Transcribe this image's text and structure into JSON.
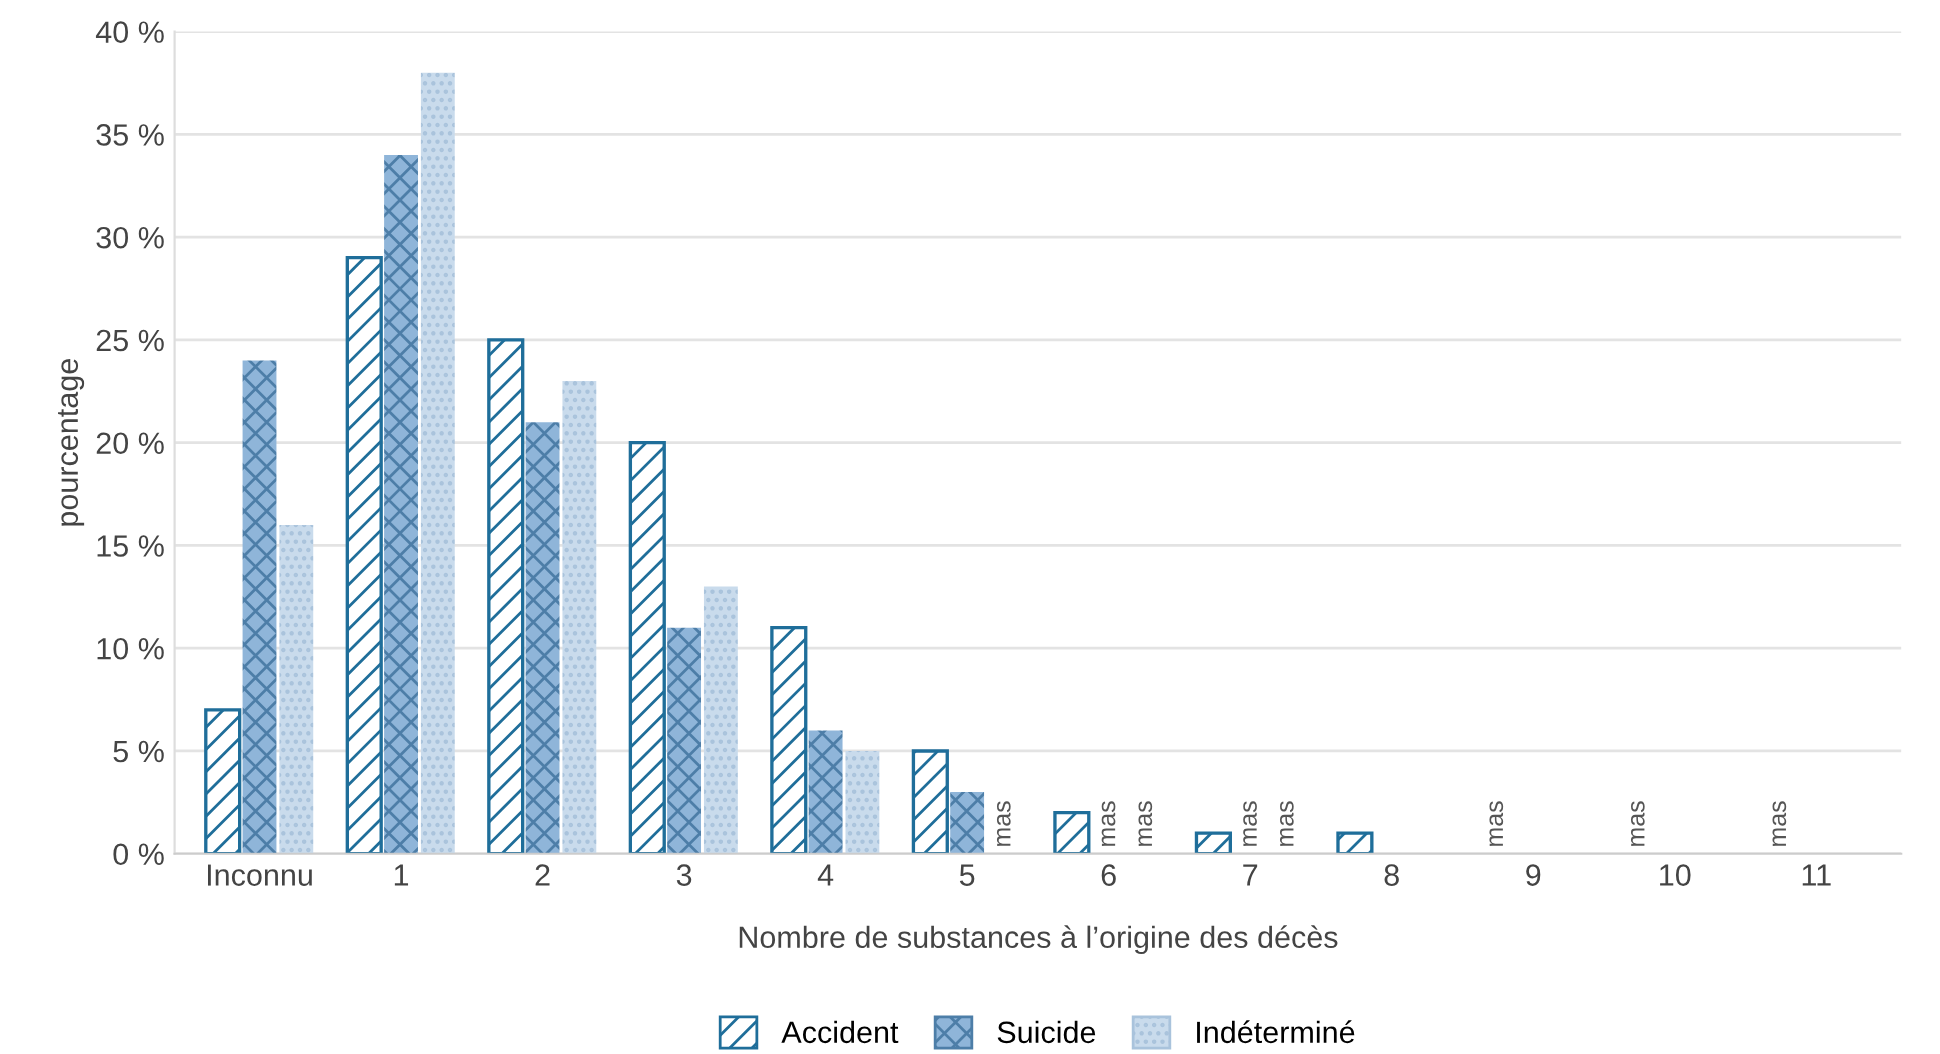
{
  "chart_data": {
    "type": "bar",
    "xlabel": "Nombre de substances à l’origine des décès",
    "ylabel": "pourcentage",
    "categories": [
      "Inconnu",
      "1",
      "2",
      "3",
      "4",
      "5",
      "6",
      "7",
      "8",
      "9",
      "10",
      "11"
    ],
    "series": [
      {
        "name": "Accident",
        "color": "#1f6e9a",
        "values": [
          7,
          29,
          25,
          20,
          11,
          5,
          2,
          1,
          1,
          null,
          null,
          null
        ],
        "value_labels": [
          null,
          null,
          null,
          null,
          null,
          null,
          null,
          null,
          null,
          "mas",
          "mas",
          "mas"
        ]
      },
      {
        "name": "Suicide",
        "color": "#8fb5d9",
        "values": [
          24,
          34,
          21,
          11,
          6,
          3,
          null,
          null,
          null,
          null,
          null,
          null
        ],
        "value_labels": [
          null,
          null,
          null,
          null,
          null,
          null,
          "mas",
          "mas",
          null,
          null,
          null,
          null
        ]
      },
      {
        "name": "Indéterminé",
        "color": "#c9dbec",
        "values": [
          16,
          38,
          23,
          13,
          5,
          null,
          null,
          null,
          null,
          null,
          null,
          null
        ],
        "value_labels": [
          null,
          null,
          null,
          null,
          null,
          "mas",
          "mas",
          "mas",
          null,
          null,
          null,
          null
        ]
      }
    ],
    "ylim": [
      0,
      40
    ],
    "yticks": [
      {
        "value": 0,
        "label": "0 %"
      },
      {
        "value": 5,
        "label": "5 %"
      },
      {
        "value": 10,
        "label": "10 %"
      },
      {
        "value": 15,
        "label": "15 %"
      },
      {
        "value": 20,
        "label": "20 %"
      },
      {
        "value": 25,
        "label": "25 %"
      },
      {
        "value": 30,
        "label": "30 %"
      },
      {
        "value": 35,
        "label": "35 %"
      },
      {
        "value": 40,
        "label": "40 %"
      }
    ],
    "grid": "y",
    "legend": "bottom"
  }
}
